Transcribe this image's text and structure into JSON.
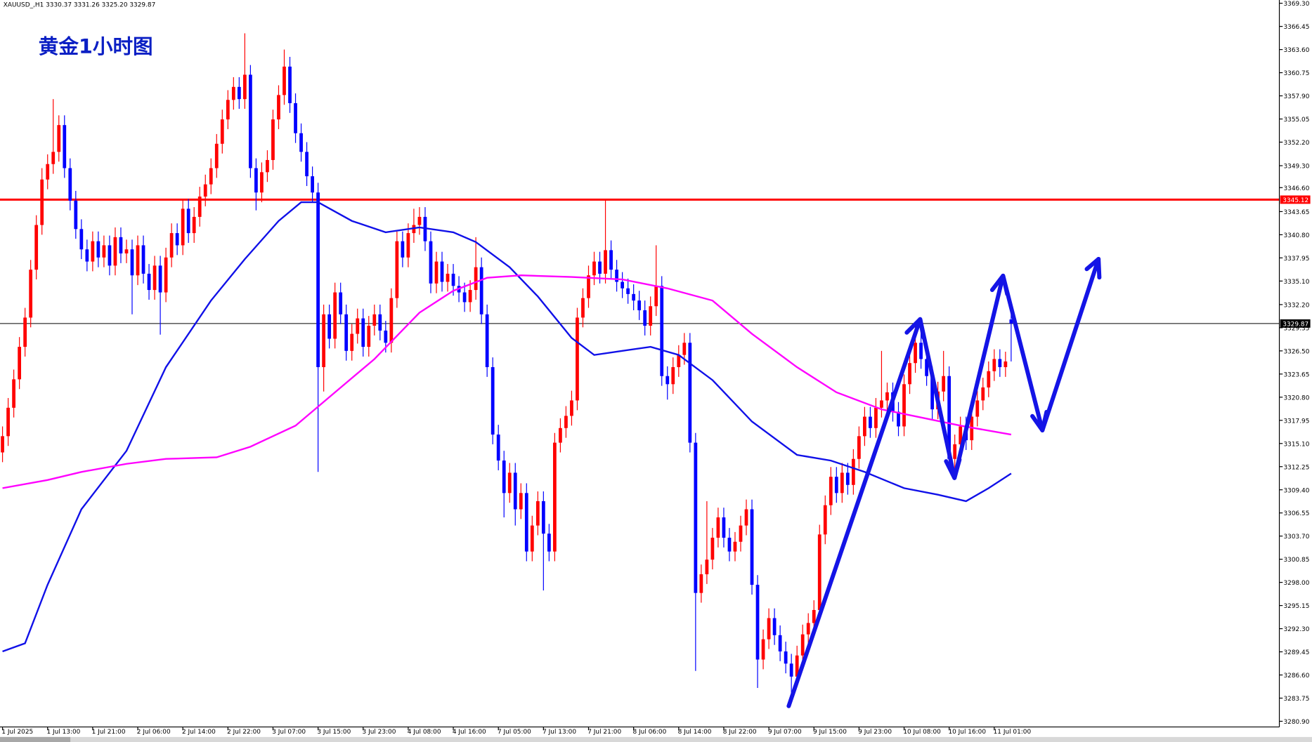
{
  "chart_data": {
    "type": "candlestick",
    "header": "XAUUSD_,H1  3330.37 3331.26 3325.20 3329.87",
    "title": "黄金1小时图",
    "up_color": "#ff0000",
    "down_color": "#0000ff",
    "categories": [
      "1 Jul 2025",
      null,
      null,
      null,
      null,
      null,
      null,
      null,
      "1 Jul 13:00",
      null,
      null,
      null,
      null,
      null,
      null,
      null,
      "1 Jul 21:00",
      null,
      null,
      null,
      null,
      null,
      null,
      null,
      "2 Jul 06:00",
      null,
      null,
      null,
      null,
      null,
      null,
      null,
      "2 Jul 14:00",
      null,
      null,
      null,
      null,
      null,
      null,
      null,
      "2 Jul 22:00",
      null,
      null,
      null,
      null,
      null,
      null,
      null,
      "3 Jul 07:00",
      null,
      null,
      null,
      null,
      null,
      null,
      null,
      "3 Jul 15:00",
      null,
      null,
      null,
      null,
      null,
      null,
      null,
      "3 Jul 23:00",
      null,
      null,
      null,
      null,
      null,
      null,
      null,
      "4 Jul 08:00",
      null,
      null,
      null,
      null,
      null,
      null,
      null,
      "4 Jul 16:00",
      null,
      null,
      null,
      null,
      null,
      null,
      null,
      "7 Jul 05:00",
      null,
      null,
      null,
      null,
      null,
      null,
      null,
      "7 Jul 13:00",
      null,
      null,
      null,
      null,
      null,
      null,
      null,
      "7 Jul 21:00",
      null,
      null,
      null,
      null,
      null,
      null,
      null,
      "8 Jul 06:00",
      null,
      null,
      null,
      null,
      null,
      null,
      null,
      "8 Jul 14:00",
      null,
      null,
      null,
      null,
      null,
      null,
      null,
      "8 Jul 22:00",
      null,
      null,
      null,
      null,
      null,
      null,
      null,
      "9 Jul 07:00",
      null,
      null,
      null,
      null,
      null,
      null,
      null,
      "9 Jul 15:00",
      null,
      null,
      null,
      null,
      null,
      null,
      null,
      "9 Jul 23:00",
      null,
      null,
      null,
      null,
      null,
      null,
      null,
      "10 Jul 08:00",
      null,
      null,
      null,
      null,
      null,
      null,
      null,
      "10 Jul 16:00",
      null,
      null,
      null,
      null,
      null,
      null,
      null,
      "11 Jul 01:00",
      null,
      null,
      null
    ],
    "open": [
      3314,
      3316,
      3319.5,
      3323,
      3327,
      3330.6,
      3336.5,
      3342,
      3347.6,
      3349.5,
      3351,
      3354.3,
      3349,
      3345,
      3341.5,
      3339,
      3337.5,
      3340,
      3338,
      3339.5,
      3337,
      3340.5,
      3338.5,
      3339,
      3335.8,
      3339.5,
      3336,
      3334,
      3337,
      3333.7,
      3338,
      3341,
      3339.5,
      3344,
      3341,
      3343,
      3345.5,
      3347,
      3349,
      3352,
      3355,
      3357.4,
      3359,
      3357.5,
      3360.5,
      3349,
      3346,
      3348.5,
      3350,
      3355,
      3358,
      3361.5,
      3357,
      3353.3,
      3351,
      3348,
      3346,
      3324.5,
      3331,
      3328,
      3333.7,
      3331,
      3326.5,
      3328.6,
      3330.5,
      3327,
      3329.6,
      3331,
      3329,
      3327.5,
      3333,
      3340,
      3338,
      3341,
      3342,
      3343,
      3340,
      3334.8,
      3337.5,
      3335,
      3336,
      3334.5,
      3333.7,
      3332.5,
      3334,
      3336.8,
      3331,
      3324.5,
      3316.2,
      3313,
      3309,
      3311.5,
      3307,
      3309,
      3301.8,
      3305,
      3308,
      3304,
      3301.8,
      3315.2,
      3317,
      3318.5,
      3320.4,
      3330.6,
      3333,
      3335.8,
      3337.5,
      3336,
      3338.9,
      3336.5,
      3335,
      3334.2,
      3333.5,
      3332.7,
      3331.5,
      3329.6,
      3332,
      3334.5,
      3323.4,
      3322.4,
      3324.5,
      3326,
      3327.5,
      3315.2,
      3296.7,
      3299,
      3300.8,
      3303.5,
      3306,
      3303.5,
      3301.8,
      3303,
      3305,
      3307,
      3297.7,
      3288.5,
      3291,
      3293.6,
      3291.5,
      3289.5,
      3288,
      3286.4,
      3289,
      3291.6,
      3293,
      3294.6,
      3303.9,
      3307.5,
      3311,
      3309,
      3311.5,
      3310,
      3313.2,
      3316,
      3318.4,
      3317,
      3319.5,
      3320.4,
      3321.4,
      3319,
      3317.2,
      3322.4,
      3325,
      3327.5,
      3325.5,
      3323.4,
      3319.3,
      3321.5,
      3323.4,
      3313.2,
      3315,
      3317.2,
      3315.5,
      3318.4,
      3320.4,
      3322,
      3324,
      3325.5,
      3324.5,
      3330.37
    ],
    "high": [
      3317.2,
      3320.7,
      3324.2,
      3328.2,
      3331.8,
      3337.7,
      3343.2,
      3349,
      3350.7,
      3357.5,
      3355.5,
      3355.5,
      3350.2,
      3346.2,
      3342.7,
      3340.2,
      3341.2,
      3341.2,
      3340.7,
      3340.7,
      3341.7,
      3341.7,
      3340.2,
      3340.2,
      3340.7,
      3340.7,
      3337.2,
      3338.2,
      3338.2,
      3339.2,
      3342.2,
      3342.2,
      3345.2,
      3345.2,
      3344.2,
      3346.7,
      3348.2,
      3350.2,
      3353.2,
      3356.2,
      3358.6,
      3360.2,
      3360.2,
      3365.6,
      3361.7,
      3350.2,
      3349.7,
      3351.2,
      3356.2,
      3359.2,
      3363.6,
      3362.7,
      3358.2,
      3354.5,
      3352.2,
      3349.2,
      3347.2,
      3332.2,
      3332.2,
      3334.9,
      3334.9,
      3332.2,
      3329.8,
      3331.7,
      3331.7,
      3330.8,
      3332.2,
      3332.2,
      3330.2,
      3334.2,
      3341.2,
      3341.2,
      3342.2,
      3344,
      3344.2,
      3344.2,
      3341.2,
      3338.7,
      3338.7,
      3337.2,
      3337.2,
      3335.7,
      3334.9,
      3335.2,
      3340.5,
      3338,
      3332.2,
      3325.7,
      3317.4,
      3314.2,
      3312.7,
      3312.7,
      3310.2,
      3310.2,
      3306.2,
      3309.2,
      3309.2,
      3305.2,
      3316.4,
      3318.2,
      3319.7,
      3321.6,
      3331.8,
      3334.2,
      3337,
      3338.7,
      3338.7,
      3345.2,
      3340.1,
      3337.7,
      3336.2,
      3335.4,
      3334.7,
      3333.9,
      3332.7,
      3333.2,
      3339.5,
      3335.7,
      3324.6,
      3325.7,
      3327.2,
      3328.7,
      3328.7,
      3316.4,
      3300.2,
      3308,
      3304.7,
      3307.2,
      3307.2,
      3304.7,
      3304.2,
      3306.2,
      3308.2,
      3308.2,
      3298.9,
      3292.2,
      3294.8,
      3294.8,
      3292.7,
      3290.7,
      3289.2,
      3290.2,
      3292.8,
      3294.2,
      3295.8,
      3305.1,
      3308.7,
      3312.2,
      3312.2,
      3312.7,
      3312.7,
      3314.4,
      3317.2,
      3319.6,
      3319.6,
      3320.7,
      3326.5,
      3322.6,
      3322.6,
      3320.2,
      3323.6,
      3326.2,
      3330,
      3328.7,
      3326.7,
      3324.6,
      3322.7,
      3326.5,
      3324.6,
      3316.2,
      3318.4,
      3318.4,
      3319.6,
      3321.6,
      3323.2,
      3325.2,
      3326.7,
      3326.7,
      3326.4,
      3331.26
    ],
    "low": [
      3312.8,
      3314.8,
      3318.3,
      3321.8,
      3325.8,
      3329.4,
      3335.3,
      3340.8,
      3346.4,
      3348.3,
      3349.8,
      3347.8,
      3343.8,
      3340.3,
      3337.8,
      3336.3,
      3336.3,
      3336.8,
      3336.8,
      3335.8,
      3335.8,
      3337.3,
      3337.3,
      3331,
      3334.6,
      3334.8,
      3332.8,
      3332.8,
      3328.5,
      3332.5,
      3336.8,
      3338.3,
      3338.3,
      3339.8,
      3339.8,
      3341.8,
      3344.3,
      3345.8,
      3347.8,
      3350.8,
      3353.8,
      3356.2,
      3356.3,
      3356.3,
      3347.8,
      3343.8,
      3344.8,
      3347.3,
      3348.8,
      3353.8,
      3356.8,
      3355.8,
      3352.1,
      3349.8,
      3346.8,
      3344.8,
      3311.6,
      3321.5,
      3326.8,
      3326.8,
      3329.8,
      3325.3,
      3325.3,
      3327.4,
      3325.8,
      3325.8,
      3328.4,
      3327.8,
      3326.3,
      3326.3,
      3331.8,
      3336.8,
      3336.8,
      3339.8,
      3340.8,
      3338.8,
      3333.6,
      3333.6,
      3333.8,
      3333.8,
      3333.3,
      3332.5,
      3331.3,
      3331.3,
      3332.8,
      3329.8,
      3323.3,
      3315,
      3311.8,
      3306,
      3307.8,
      3305,
      3305.8,
      3300.6,
      3300.6,
      3303.8,
      3297,
      3300.6,
      3300.6,
      3314,
      3315.8,
      3317.3,
      3319.2,
      3329.4,
      3331.8,
      3334.6,
      3334.8,
      3334.8,
      3335.3,
      3333.8,
      3333,
      3332.3,
      3331.5,
      3330.3,
      3328.4,
      3328.4,
      3330.8,
      3322.2,
      3320.5,
      3321.2,
      3323.3,
      3324.8,
      3314,
      3287.1,
      3295.5,
      3297.8,
      3299.6,
      3302.3,
      3302.3,
      3300.6,
      3300.6,
      3301.8,
      3303.8,
      3296.5,
      3285,
      3287.3,
      3289.8,
      3290.3,
      3288.3,
      3286.8,
      3284,
      3285.2,
      3287.8,
      3290.4,
      3291.8,
      3293.4,
      3302.7,
      3306.3,
      3307.8,
      3307.8,
      3308.8,
      3308.8,
      3312,
      3314.8,
      3315.8,
      3315.8,
      3318.3,
      3319.2,
      3317.8,
      3316,
      3316,
      3321.2,
      3323.8,
      3324.3,
      3322.2,
      3318.1,
      3318.1,
      3320.3,
      3312,
      3312,
      3313.8,
      3314.3,
      3314.3,
      3317.2,
      3319.2,
      3320.8,
      3322.8,
      3323.3,
      3323.3,
      3325.2
    ],
    "close": [
      3316,
      3319.5,
      3323,
      3327,
      3330.6,
      3336.5,
      3342,
      3347.6,
      3349.5,
      3351,
      3354.3,
      3349,
      3345,
      3341.5,
      3339,
      3337.5,
      3340,
      3338,
      3339.5,
      3337,
      3340.5,
      3338.5,
      3339,
      3335.8,
      3339.5,
      3336,
      3334,
      3337,
      3333.7,
      3338,
      3341,
      3339.5,
      3344,
      3341,
      3343,
      3345.5,
      3347,
      3349,
      3352,
      3355,
      3357.4,
      3359,
      3357.5,
      3360.5,
      3349,
      3346,
      3348.5,
      3350,
      3355,
      3358,
      3361.5,
      3357,
      3353.3,
      3351,
      3348,
      3346,
      3324.5,
      3331,
      3328,
      3333.7,
      3331,
      3326.5,
      3328.6,
      3330.5,
      3327,
      3329.6,
      3331,
      3329,
      3327.5,
      3333,
      3340,
      3338,
      3341,
      3342,
      3343,
      3340,
      3334.8,
      3337.5,
      3335,
      3336,
      3334.5,
      3333.7,
      3332.5,
      3334,
      3336.8,
      3331,
      3324.5,
      3316.2,
      3313,
      3309,
      3311.5,
      3307,
      3309,
      3301.8,
      3305,
      3308,
      3304,
      3301.8,
      3315.2,
      3317,
      3318.5,
      3320.4,
      3330.6,
      3333,
      3335.8,
      3337.5,
      3336,
      3338.9,
      3336.5,
      3335,
      3334.2,
      3333.5,
      3332.7,
      3331.5,
      3329.6,
      3332,
      3334.5,
      3323.4,
      3322.4,
      3324.5,
      3326,
      3327.5,
      3315.2,
      3296.7,
      3299,
      3300.8,
      3303.5,
      3306,
      3303.5,
      3301.8,
      3303,
      3305,
      3307,
      3297.7,
      3288.5,
      3291,
      3293.6,
      3291.5,
      3289.5,
      3288,
      3286.4,
      3289,
      3291.6,
      3293,
      3294.6,
      3303.9,
      3307.5,
      3311,
      3309,
      3311.5,
      3310,
      3313.2,
      3316,
      3318.4,
      3317,
      3319.5,
      3320.4,
      3321.4,
      3319,
      3317.2,
      3322.4,
      3325,
      3327.5,
      3325.5,
      3323.4,
      3319.3,
      3321.5,
      3323.4,
      3313.2,
      3315,
      3317.2,
      3315.5,
      3318.4,
      3320.4,
      3322,
      3324,
      3325.5,
      3324.5,
      3325.2,
      3329.87
    ],
    "lines": [
      {
        "color": "#1010e8",
        "x": [
          0,
          4,
          8,
          14,
          22,
          29,
          37,
          43,
          49,
          53,
          56,
          62,
          68,
          74,
          80,
          84,
          90,
          95,
          101,
          105,
          110,
          115,
          120,
          126,
          133,
          141,
          147,
          153,
          160,
          166,
          171,
          175,
          179
        ],
        "values": [
          3289.5,
          3290.5,
          3297.7,
          3307,
          3314.2,
          3324.5,
          3332.7,
          3337.8,
          3342.5,
          3344.8,
          3344.8,
          3342.5,
          3341.1,
          3341.7,
          3341.1,
          3339.9,
          3336.8,
          3333.2,
          3328.1,
          3326,
          3326.5,
          3327,
          3326,
          3322.9,
          3317.8,
          3313.7,
          3313,
          3311.6,
          3309.6,
          3308.8,
          3308,
          3309.6,
          3311.4
        ]
      },
      {
        "color": "#ff00ff",
        "x": [
          0,
          8,
          14,
          22,
          29,
          38,
          44,
          52,
          59,
          66,
          74,
          80,
          86,
          92,
          101,
          110,
          118,
          126,
          133,
          141,
          148,
          156,
          163,
          170,
          179
        ],
        "values": [
          3309.6,
          3310.6,
          3311.6,
          3312.6,
          3313.2,
          3313.4,
          3314.7,
          3317.3,
          3321.4,
          3325.5,
          3331.2,
          3333.9,
          3335.5,
          3335.8,
          3335.6,
          3335.3,
          3334.2,
          3332.7,
          3328.6,
          3324.5,
          3321.4,
          3319.3,
          3318.3,
          3317.3,
          3316.2
        ]
      }
    ],
    "resistance": 3345.12,
    "resistance_color": "#ff0000",
    "last_price": 3329.87,
    "ylim": [
      3280.2,
      3369.7
    ],
    "yticks": [
      {
        "value": 3369.3,
        "label": "3369.30"
      },
      {
        "value": 3366.45,
        "label": "3366.45"
      },
      {
        "value": 3363.6,
        "label": "3363.60"
      },
      {
        "value": 3360.75,
        "label": "3360.75"
      },
      {
        "value": 3357.9,
        "label": "3357.90"
      },
      {
        "value": 3355.05,
        "label": "3355.05"
      },
      {
        "value": 3352.2,
        "label": "3352.20"
      },
      {
        "value": 3349.3,
        "label": "3349.30"
      },
      {
        "value": 3346.6,
        "label": "3346.60"
      },
      {
        "value": 3343.65,
        "label": "3343.65"
      },
      {
        "value": 3340.8,
        "label": "3340.80"
      },
      {
        "value": 3337.95,
        "label": "3337.95"
      },
      {
        "value": 3335.1,
        "label": "3335.10"
      },
      {
        "value": 3332.2,
        "label": "3332.20"
      },
      {
        "value": 3329.35,
        "label": "3329.35"
      },
      {
        "value": 3326.5,
        "label": "3326.50"
      },
      {
        "value": 3323.65,
        "label": "3323.65"
      },
      {
        "value": 3320.8,
        "label": "3320.80"
      },
      {
        "value": 3317.95,
        "label": "3317.95"
      },
      {
        "value": 3315.1,
        "label": "3315.10"
      },
      {
        "value": 3312.25,
        "label": "3312.25"
      },
      {
        "value": 3309.4,
        "label": "3309.40"
      },
      {
        "value": 3306.55,
        "label": "3306.55"
      },
      {
        "value": 3303.7,
        "label": "3303.70"
      },
      {
        "value": 3300.85,
        "label": "3300.85"
      },
      {
        "value": 3298,
        "label": "3298.00"
      },
      {
        "value": 3295.15,
        "label": "3295.15"
      },
      {
        "value": 3292.3,
        "label": "3292.30"
      },
      {
        "value": 3289.45,
        "label": "3289.45"
      },
      {
        "value": 3286.6,
        "label": "3286.60"
      },
      {
        "value": 3283.75,
        "label": "3283.75"
      },
      {
        "value": 3280.9,
        "label": "3280.90"
      }
    ]
  }
}
